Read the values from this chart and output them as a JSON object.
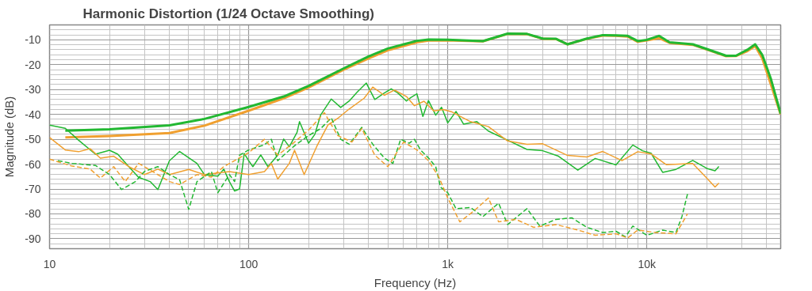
{
  "chart_data": {
    "type": "line",
    "title": "Harmonic Distortion (1/24 Octave Smoothing)",
    "xlabel": "Frequency (Hz)",
    "ylabel": "Magnitude (dB)",
    "log": "x",
    "grid": true,
    "xlim": [
      10,
      47000
    ],
    "ylim": [
      -94,
      -4
    ],
    "xticks": [
      10,
      100,
      {
        "value": 1000,
        "label": "1k"
      },
      {
        "value": 10000,
        "label": "10k"
      }
    ],
    "yticks": [
      -10,
      -20,
      -30,
      -40,
      -50,
      -60,
      -70,
      -80,
      -90
    ],
    "series": [
      {
        "color": "#f0a030",
        "line_style": "solid",
        "x": [
          12,
          20,
          40,
          60,
          100,
          150,
          200,
          300,
          400,
          500,
          700,
          800,
          1000,
          1500,
          2000,
          2500,
          3000,
          3500,
          4000,
          5000,
          6000,
          7000,
          8000,
          9000,
          10000,
          11500,
          13000,
          17000,
          20000,
          25000,
          28000,
          32000,
          35000,
          38000,
          42000,
          47000
        ],
        "values": [
          -49.2,
          -48.7,
          -47.5,
          -44.5,
          -38.5,
          -33.5,
          -29.2,
          -22,
          -17.5,
          -14.2,
          -11,
          -10.3,
          -10.2,
          -10.6,
          -7.6,
          -7.7,
          -9.6,
          -9.7,
          -11.8,
          -9.6,
          -8.3,
          -8.4,
          -8.7,
          -10.8,
          -10.2,
          -9.3,
          -11.2,
          -12,
          -13.9,
          -16.6,
          -16.5,
          -14.5,
          -12.5,
          -17.5,
          -28,
          -40
        ]
      },
      {
        "color": "#22b832",
        "line_style": "solid",
        "x": [
          12,
          20,
          40,
          60,
          100,
          150,
          200,
          300,
          400,
          500,
          700,
          800,
          1000,
          1500,
          2000,
          2500,
          3000,
          3500,
          4000,
          5000,
          6000,
          7000,
          8000,
          9000,
          10000,
          11500,
          13000,
          17000,
          20000,
          25000,
          28000,
          32000,
          35000,
          38000,
          42000,
          47000
        ],
        "values": [
          -46.5,
          -46,
          -44.4,
          -41.8,
          -37,
          -32.8,
          -28.5,
          -21.5,
          -16.7,
          -13.5,
          -10.4,
          -9.9,
          -10,
          -10.5,
          -7.5,
          -7.6,
          -9.5,
          -9.6,
          -11.8,
          -9.5,
          -8.1,
          -8.2,
          -8.4,
          -10.5,
          -10,
          -8.4,
          -11,
          -11.8,
          -13.7,
          -16.4,
          -16.4,
          -14,
          -11.8,
          -16.1,
          -25.8,
          -39.7
        ]
      },
      {
        "color": "#22b832",
        "line_style": "solid",
        "x": [
          10,
          12,
          14,
          17,
          20,
          22,
          25,
          28,
          32,
          35,
          40,
          45,
          55,
          60,
          70,
          75,
          80,
          85,
          90,
          95,
          100,
          105,
          115,
          125,
          140,
          150,
          160,
          175,
          180,
          200,
          215,
          230,
          260,
          290,
          320,
          350,
          390,
          430,
          480,
          520,
          560,
          620,
          650,
          700,
          750,
          800,
          870,
          930,
          1000,
          1100,
          1200,
          1400,
          1600,
          2000,
          2500,
          3000,
          3600,
          4500,
          5500,
          7000,
          8500,
          9500,
          10500,
          12000,
          14000,
          17000,
          20000,
          22000,
          23000
        ],
        "values": [
          -44.3,
          -45.6,
          -50.4,
          -56,
          -54.4,
          -56,
          -61,
          -65.3,
          -67,
          -70.2,
          -58.6,
          -54.9,
          -59.7,
          -64.3,
          -64.8,
          -62,
          -67,
          -70.8,
          -70,
          -55.7,
          -58.6,
          -61,
          -56.3,
          -61,
          -56.4,
          -49.9,
          -53,
          -47.2,
          -42.9,
          -51.6,
          -48,
          -40.2,
          -33.8,
          -37.2,
          -34.6,
          -31.1,
          -27.4,
          -34,
          -31.4,
          -29.7,
          -31.3,
          -34.6,
          -33.3,
          -31.7,
          -40.8,
          -34.4,
          -40.3,
          -37.1,
          -43.4,
          -38.8,
          -43.9,
          -42.9,
          -46.7,
          -50.4,
          -54.1,
          -54.6,
          -56.8,
          -62.4,
          -57.7,
          -60.3,
          -52.3,
          -54.6,
          -55.6,
          -63.3,
          -62.1,
          -58.5,
          -61.7,
          -62.7,
          -60.9
        ]
      },
      {
        "color": "#f0a030",
        "line_style": "solid",
        "x": [
          10,
          12,
          14,
          16,
          18,
          21,
          25,
          30,
          35,
          40,
          50,
          60,
          80,
          100,
          120,
          130,
          140,
          160,
          170,
          190,
          220,
          250,
          280,
          320,
          380,
          420,
          480,
          540,
          620,
          680,
          760,
          850,
          950,
          1050,
          1300,
          1600,
          2000,
          2500,
          3000,
          4000,
          5000,
          6000,
          7500,
          9000,
          10500,
          12500,
          17000,
          20000,
          22000,
          23000
        ],
        "values": [
          -49.3,
          -54.3,
          -55,
          -53.8,
          -57.6,
          -56.8,
          -61,
          -64.2,
          -62,
          -64.2,
          -62.1,
          -64.2,
          -63,
          -64.2,
          -63,
          -59.7,
          -66,
          -59.7,
          -54.4,
          -64.2,
          -52.8,
          -44.3,
          -41.6,
          -37.8,
          -33.5,
          -29,
          -32.3,
          -30.2,
          -32.8,
          -36.5,
          -34.7,
          -38.6,
          -38,
          -39,
          -42.9,
          -44.9,
          -50.7,
          -52,
          -51.8,
          -56.5,
          -57.1,
          -54.9,
          -58.6,
          -55,
          -55.9,
          -60.2,
          -59.7,
          -65.6,
          -69.2,
          -67.6
        ]
      },
      {
        "color": "#22b832",
        "line_style": "dashed",
        "x": [
          11,
          13,
          17,
          20,
          23,
          27,
          30,
          35,
          40,
          45,
          50,
          55,
          65,
          70,
          80,
          85,
          90,
          100,
          120,
          130,
          140,
          150,
          170,
          200,
          230,
          260,
          290,
          320,
          370,
          420,
          480,
          530,
          580,
          640,
          680,
          730,
          800,
          870,
          920,
          1000,
          1100,
          1300,
          1500,
          1800,
          2000,
          2500,
          2900,
          3500,
          4200,
          5000,
          6000,
          7000,
          7800,
          8500,
          10000,
          12000,
          14000,
          15000,
          16000
        ],
        "values": [
          -58.6,
          -59.7,
          -60.5,
          -64.2,
          -70.2,
          -67,
          -62.9,
          -61,
          -64.2,
          -66.3,
          -78.2,
          -67,
          -63,
          -71.5,
          -64.2,
          -67,
          -56.4,
          -54.3,
          -52.2,
          -50,
          -58.6,
          -56.4,
          -52.6,
          -48.5,
          -45.7,
          -41.4,
          -50,
          -52,
          -45.2,
          -52,
          -57.5,
          -59.7,
          -50,
          -51.6,
          -50,
          -54.3,
          -57.5,
          -61,
          -69.3,
          -71.5,
          -77.9,
          -77.4,
          -81.1,
          -75.7,
          -84.3,
          -77.9,
          -84.9,
          -82.2,
          -81.6,
          -85.4,
          -87.5,
          -87,
          -89.2,
          -84.9,
          -88.6,
          -86.5,
          -87.5,
          -81.1,
          -72
        ]
      },
      {
        "color": "#f0a030",
        "line_style": "dashed",
        "x": [
          10,
          13,
          16,
          18,
          21,
          24,
          28,
          33,
          40,
          45,
          55,
          65,
          75,
          85,
          100,
          120,
          140,
          170,
          200,
          240,
          280,
          330,
          370,
          430,
          500,
          600,
          700,
          800,
          900,
          1000,
          1150,
          1350,
          1600,
          1800,
          2200,
          2700,
          3500,
          4500,
          5500,
          7000,
          8000,
          9000,
          11000,
          14000,
          16000
        ],
        "values": [
          -58,
          -60.8,
          -62,
          -65.6,
          -61,
          -67,
          -59.7,
          -63,
          -67,
          -68.2,
          -64.2,
          -65.2,
          -61,
          -58.6,
          -55.4,
          -50,
          -56.4,
          -51.1,
          -46.3,
          -39.3,
          -48.5,
          -51.1,
          -45.7,
          -56.4,
          -61,
          -51.1,
          -54.3,
          -58.6,
          -65,
          -73.6,
          -83.2,
          -78.9,
          -73.6,
          -83.2,
          -82.2,
          -85.4,
          -84.3,
          -86.5,
          -88.6,
          -88,
          -89.7,
          -86.5,
          -87.5,
          -88,
          -80
        ]
      }
    ]
  }
}
